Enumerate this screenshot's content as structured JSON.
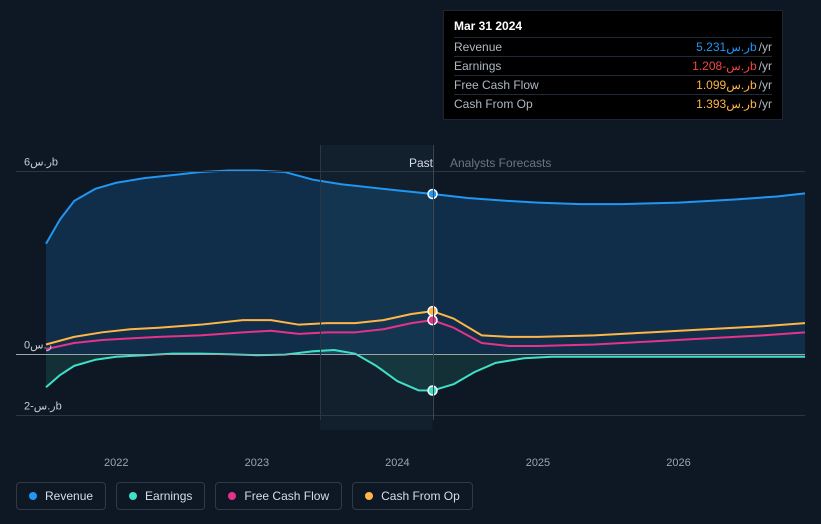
{
  "chart": {
    "type": "line",
    "background_color": "#0d1824",
    "grid_color": "#2a3642",
    "zero_line_color": "#9aa5b0",
    "text_color": "#c5ced6",
    "x_axis": {
      "range": [
        2021.5,
        2026.9
      ],
      "ticks": [
        2022,
        2023,
        2024,
        2025,
        2026
      ],
      "tick_labels": [
        "2022",
        "2023",
        "2024",
        "2025",
        "2026"
      ]
    },
    "y_axis": {
      "range": [
        -2.5,
        7.0
      ],
      "ticks": [
        -2,
        0,
        6
      ],
      "tick_labels": [
        "ر.س-2b",
        "ر.س0",
        "ر.س6b"
      ]
    },
    "highlight_x": 2024.25,
    "past_forecast_split_x": 2023.45,
    "labels": {
      "past": "Past",
      "forecasts": "Analysts Forecasts"
    },
    "series": [
      {
        "id": "revenue",
        "label": "Revenue",
        "color": "#2196f3",
        "fill_opacity": 0.18,
        "line_width": 2,
        "marker_x": 2024.25,
        "marker_y": 5.231,
        "data": [
          [
            2021.5,
            3.6
          ],
          [
            2021.6,
            4.4
          ],
          [
            2021.7,
            5.0
          ],
          [
            2021.85,
            5.4
          ],
          [
            2022.0,
            5.6
          ],
          [
            2022.2,
            5.75
          ],
          [
            2022.4,
            5.85
          ],
          [
            2022.6,
            5.95
          ],
          [
            2022.8,
            6.0
          ],
          [
            2023.0,
            6.0
          ],
          [
            2023.2,
            5.95
          ],
          [
            2023.4,
            5.7
          ],
          [
            2023.6,
            5.55
          ],
          [
            2023.8,
            5.45
          ],
          [
            2024.0,
            5.35
          ],
          [
            2024.25,
            5.231
          ],
          [
            2024.5,
            5.1
          ],
          [
            2024.8,
            5.0
          ],
          [
            2025.0,
            4.95
          ],
          [
            2025.3,
            4.9
          ],
          [
            2025.6,
            4.9
          ],
          [
            2026.0,
            4.95
          ],
          [
            2026.4,
            5.05
          ],
          [
            2026.7,
            5.15
          ],
          [
            2026.9,
            5.25
          ]
        ]
      },
      {
        "id": "cash_from_op",
        "label": "Cash From Op",
        "color": "#ffb547",
        "fill_opacity": 0,
        "line_width": 2,
        "marker_x": 2024.25,
        "marker_y": 1.393,
        "data": [
          [
            2021.5,
            0.3
          ],
          [
            2021.7,
            0.55
          ],
          [
            2021.9,
            0.7
          ],
          [
            2022.1,
            0.8
          ],
          [
            2022.3,
            0.85
          ],
          [
            2022.6,
            0.95
          ],
          [
            2022.9,
            1.1
          ],
          [
            2023.1,
            1.1
          ],
          [
            2023.3,
            0.95
          ],
          [
            2023.5,
            1.0
          ],
          [
            2023.7,
            1.0
          ],
          [
            2023.9,
            1.1
          ],
          [
            2024.1,
            1.3
          ],
          [
            2024.25,
            1.393
          ],
          [
            2024.4,
            1.15
          ],
          [
            2024.6,
            0.6
          ],
          [
            2024.8,
            0.55
          ],
          [
            2025.0,
            0.55
          ],
          [
            2025.4,
            0.6
          ],
          [
            2025.8,
            0.7
          ],
          [
            2026.2,
            0.8
          ],
          [
            2026.6,
            0.9
          ],
          [
            2026.9,
            1.0
          ]
        ]
      },
      {
        "id": "free_cash_flow",
        "label": "Free Cash Flow",
        "color": "#e6328a",
        "fill_opacity": 0,
        "line_width": 2,
        "marker_x": 2024.25,
        "marker_y": 1.099,
        "data": [
          [
            2021.5,
            0.15
          ],
          [
            2021.7,
            0.35
          ],
          [
            2021.9,
            0.45
          ],
          [
            2022.1,
            0.5
          ],
          [
            2022.3,
            0.55
          ],
          [
            2022.6,
            0.6
          ],
          [
            2022.9,
            0.7
          ],
          [
            2023.1,
            0.75
          ],
          [
            2023.3,
            0.65
          ],
          [
            2023.5,
            0.7
          ],
          [
            2023.7,
            0.7
          ],
          [
            2023.9,
            0.8
          ],
          [
            2024.1,
            1.0
          ],
          [
            2024.25,
            1.099
          ],
          [
            2024.4,
            0.85
          ],
          [
            2024.6,
            0.35
          ],
          [
            2024.8,
            0.25
          ],
          [
            2025.0,
            0.25
          ],
          [
            2025.4,
            0.3
          ],
          [
            2025.8,
            0.4
          ],
          [
            2026.2,
            0.5
          ],
          [
            2026.6,
            0.6
          ],
          [
            2026.9,
            0.7
          ]
        ]
      },
      {
        "id": "earnings",
        "label": "Earnings",
        "color": "#40e0c8",
        "fill_opacity": 0.12,
        "line_width": 2,
        "marker_x": 2024.25,
        "marker_y": -1.208,
        "data": [
          [
            2021.5,
            -1.1
          ],
          [
            2021.6,
            -0.7
          ],
          [
            2021.7,
            -0.4
          ],
          [
            2021.85,
            -0.2
          ],
          [
            2022.0,
            -0.1
          ],
          [
            2022.2,
            -0.05
          ],
          [
            2022.4,
            0.0
          ],
          [
            2022.6,
            0.0
          ],
          [
            2022.8,
            -0.02
          ],
          [
            2023.0,
            -0.05
          ],
          [
            2023.2,
            -0.03
          ],
          [
            2023.4,
            0.08
          ],
          [
            2023.55,
            0.12
          ],
          [
            2023.7,
            0.0
          ],
          [
            2023.85,
            -0.4
          ],
          [
            2024.0,
            -0.9
          ],
          [
            2024.15,
            -1.2
          ],
          [
            2024.25,
            -1.208
          ],
          [
            2024.4,
            -1.0
          ],
          [
            2024.55,
            -0.6
          ],
          [
            2024.7,
            -0.3
          ],
          [
            2024.9,
            -0.15
          ],
          [
            2025.1,
            -0.1
          ],
          [
            2025.4,
            -0.1
          ],
          [
            2025.8,
            -0.1
          ],
          [
            2026.2,
            -0.1
          ],
          [
            2026.6,
            -0.1
          ],
          [
            2026.9,
            -0.1
          ]
        ]
      }
    ]
  },
  "tooltip": {
    "date": "Mar 31 2024",
    "rows": [
      {
        "label": "Revenue",
        "value": "ر.س5.231",
        "b": "b",
        "unit": "/yr",
        "color": "#2196f3"
      },
      {
        "label": "Earnings",
        "value": "ر.س-1.208",
        "b": "b",
        "unit": "/yr",
        "color": "#f04848"
      },
      {
        "label": "Free Cash Flow",
        "value": "ر.س1.099",
        "b": "b",
        "unit": "/yr",
        "color": "#ffb547"
      },
      {
        "label": "Cash From Op",
        "value": "ر.س1.393",
        "b": "b",
        "unit": "/yr",
        "color": "#ffb547"
      }
    ]
  },
  "legend": [
    {
      "id": "revenue",
      "label": "Revenue",
      "color": "#2196f3"
    },
    {
      "id": "earnings",
      "label": "Earnings",
      "color": "#40e0c8"
    },
    {
      "id": "free_cash_flow",
      "label": "Free Cash Flow",
      "color": "#e6328a"
    },
    {
      "id": "cash_from_op",
      "label": "Cash From Op",
      "color": "#ffb547"
    }
  ]
}
